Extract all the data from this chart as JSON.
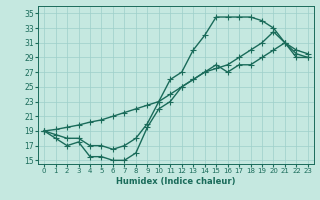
{
  "xlabel": "Humidex (Indice chaleur)",
  "xlim": [
    -0.5,
    23.5
  ],
  "ylim": [
    14.5,
    36
  ],
  "yticks": [
    15,
    17,
    19,
    21,
    23,
    25,
    27,
    29,
    31,
    33,
    35
  ],
  "xticks": [
    0,
    1,
    2,
    3,
    4,
    5,
    6,
    7,
    8,
    9,
    10,
    11,
    12,
    13,
    14,
    15,
    16,
    17,
    18,
    19,
    20,
    21,
    22,
    23
  ],
  "bg_color": "#c5e8e0",
  "grid_color": "#9ecfca",
  "line_color": "#1a6b5a",
  "line_width": 1.0,
  "marker": "+",
  "marker_size": 4,
  "lines": [
    {
      "x": [
        0,
        1,
        2,
        3,
        4,
        5,
        6,
        7,
        8,
        9,
        10,
        11,
        12,
        13,
        14,
        15,
        16,
        17,
        18,
        19,
        20,
        21,
        22,
        23
      ],
      "y": [
        19,
        18,
        17,
        17.5,
        15.5,
        15.5,
        15,
        15,
        16,
        19.5,
        22,
        23,
        25,
        26,
        27,
        28,
        27,
        28,
        28,
        29,
        30,
        31,
        29,
        29
      ]
    },
    {
      "x": [
        0,
        1,
        2,
        3,
        4,
        5,
        6,
        7,
        8,
        9,
        10,
        11,
        12,
        13,
        14,
        15,
        16,
        17,
        18,
        19,
        20,
        21,
        22,
        23
      ],
      "y": [
        19,
        18.5,
        18,
        18,
        17,
        17,
        16.5,
        17,
        18,
        20,
        23,
        26,
        27,
        30,
        32,
        34.5,
        34.5,
        34.5,
        34.5,
        34,
        33,
        31,
        30,
        29.5
      ]
    },
    {
      "x": [
        0,
        1,
        2,
        3,
        4,
        5,
        6,
        7,
        8,
        9,
        10,
        11,
        12,
        13,
        14,
        15,
        16,
        17,
        18,
        19,
        20,
        21,
        22,
        23
      ],
      "y": [
        19,
        19.2,
        19.5,
        19.8,
        20.2,
        20.5,
        21,
        21.5,
        22,
        22.5,
        23,
        24,
        25,
        26,
        27,
        27.5,
        28,
        29,
        30,
        31,
        32.5,
        31,
        29.5,
        29
      ]
    }
  ]
}
